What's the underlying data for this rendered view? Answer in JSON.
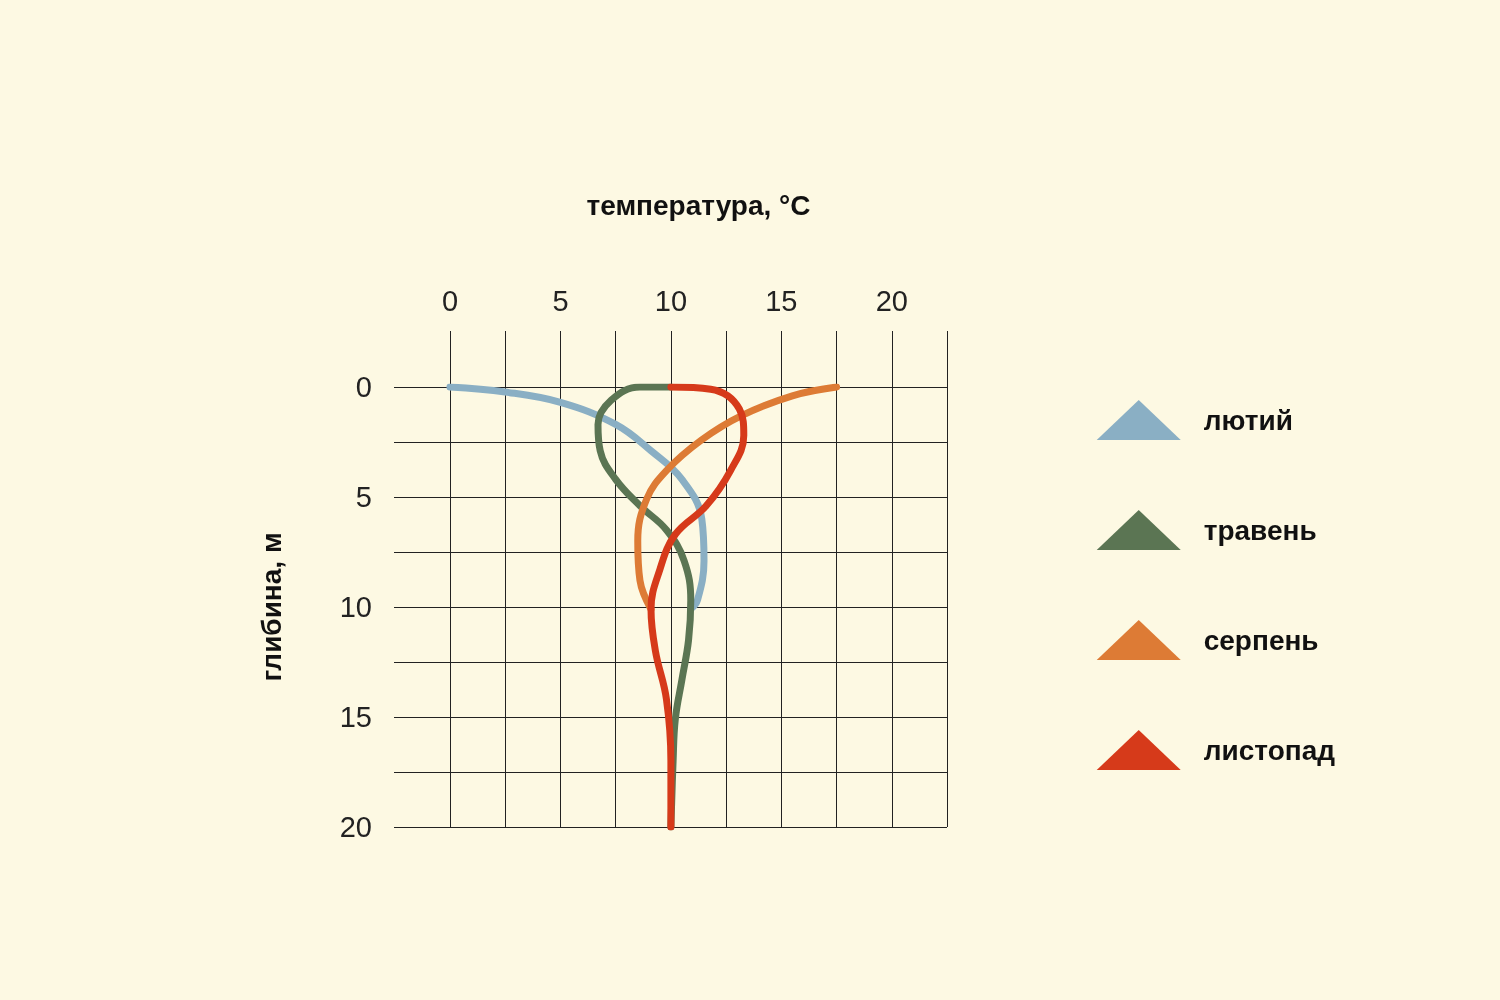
{
  "chart_data": {
    "type": "line",
    "xlabel": "температура, °C",
    "ylabel": "глибина, м",
    "xlim": [
      0,
      22.5
    ],
    "ylim": [
      20,
      0
    ],
    "xticks": [
      0,
      {
        "value": 2.5,
        "label": null
      },
      5,
      {
        "value": 7.5,
        "label": null
      },
      10,
      {
        "value": 12.5,
        "label": null
      },
      15,
      {
        "value": 17.5,
        "label": null
      },
      20,
      {
        "value": 22.5,
        "label": null
      }
    ],
    "yticks": [
      0,
      {
        "value": 2.5,
        "label": null
      },
      5,
      {
        "value": 7.5,
        "label": null
      },
      10,
      {
        "value": 12.5,
        "label": null
      },
      15,
      {
        "value": 17.5,
        "label": null
      },
      20
    ],
    "grid": true,
    "legend": "right",
    "marker": "none",
    "line_style": "solid",
    "series": [
      {
        "name": "лютий",
        "color": "#8aafc4",
        "x": [
          0,
          2.5,
          5,
          7.5,
          9.1,
          10.5,
          11.4,
          11.5,
          11.2,
          10.9
        ],
        "values": [
          0,
          0.23,
          0.7,
          1.7,
          2.9,
          4.2,
          6,
          7.9,
          9.7,
          10.1
        ]
      },
      {
        "name": "травень",
        "color": "#5b7553",
        "x": [
          10,
          8.6,
          7.3,
          6.7,
          6.8,
          7.5,
          8.6,
          9.8,
          10.6,
          10.9,
          10.8,
          10.5,
          10.2,
          10.1,
          10
        ],
        "values": [
          0,
          0,
          0.6,
          1.7,
          2.9,
          4.2,
          5.4,
          6.5,
          7.9,
          9.7,
          11.5,
          13.3,
          15.1,
          17,
          20
        ]
      },
      {
        "name": "серпень",
        "color": "#dd7b35",
        "x": [
          17.5,
          15.5,
          13.2,
          11.4,
          9.8,
          8.9,
          8.5,
          8.6,
          9.1
        ],
        "values": [
          0,
          0.4,
          1.3,
          2.4,
          3.8,
          5.1,
          7,
          8.8,
          10.1
        ]
      },
      {
        "name": "листопад",
        "color": "#d63a1a",
        "x": [
          10,
          11.8,
          13.1,
          13.3,
          12.7,
          11.6,
          10.2,
          9.5,
          9.1,
          9.3,
          9.8,
          10,
          10
        ],
        "values": [
          0,
          0.1,
          1,
          2.2,
          3.8,
          5.4,
          6.7,
          8.3,
          10.1,
          12,
          14.2,
          17,
          20
        ]
      }
    ]
  }
}
